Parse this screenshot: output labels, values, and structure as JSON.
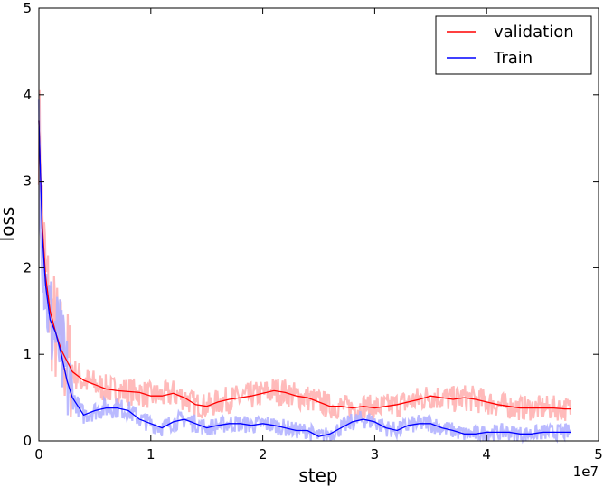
{
  "chart_data": {
    "type": "line",
    "xlabel": "step",
    "ylabel": "loss",
    "x_scale_label": "1e7",
    "xlim": [
      0,
      5
    ],
    "ylim": [
      0,
      5
    ],
    "x_ticks": [
      "0",
      "1",
      "2",
      "3",
      "4",
      "5"
    ],
    "y_ticks": [
      "0",
      "1",
      "2",
      "3",
      "4",
      "5"
    ],
    "grid": false,
    "legend_position": "top-right",
    "series": [
      {
        "name": "validation",
        "color": "#ff0000",
        "raw_color": "#ffb3b3",
        "x": [
          0.0,
          0.03,
          0.06,
          0.1,
          0.15,
          0.2,
          0.3,
          0.4,
          0.5,
          0.6,
          0.7,
          0.8,
          0.9,
          1.0,
          1.1,
          1.2,
          1.3,
          1.4,
          1.5,
          1.6,
          1.7,
          1.8,
          1.9,
          2.0,
          2.1,
          2.2,
          2.3,
          2.4,
          2.5,
          2.6,
          2.7,
          2.8,
          2.9,
          3.0,
          3.1,
          3.2,
          3.3,
          3.4,
          3.5,
          3.6,
          3.7,
          3.8,
          3.9,
          4.0,
          4.1,
          4.2,
          4.3,
          4.4,
          4.5,
          4.6,
          4.7,
          4.75
        ],
        "values": [
          3.7,
          2.5,
          1.9,
          1.5,
          1.25,
          1.05,
          0.8,
          0.7,
          0.65,
          0.6,
          0.58,
          0.57,
          0.56,
          0.52,
          0.52,
          0.55,
          0.5,
          0.42,
          0.4,
          0.45,
          0.48,
          0.5,
          0.52,
          0.55,
          0.58,
          0.56,
          0.52,
          0.5,
          0.45,
          0.4,
          0.4,
          0.38,
          0.4,
          0.38,
          0.4,
          0.42,
          0.45,
          0.48,
          0.52,
          0.5,
          0.48,
          0.5,
          0.48,
          0.45,
          0.42,
          0.4,
          0.38,
          0.38,
          0.38,
          0.38,
          0.37,
          0.37
        ]
      },
      {
        "name": "Train",
        "color": "#0000ff",
        "raw_color": "#b3b3ff",
        "x": [
          0.0,
          0.03,
          0.06,
          0.1,
          0.15,
          0.2,
          0.25,
          0.3,
          0.35,
          0.4,
          0.5,
          0.6,
          0.7,
          0.8,
          0.9,
          1.0,
          1.1,
          1.2,
          1.3,
          1.4,
          1.5,
          1.6,
          1.7,
          1.8,
          1.9,
          2.0,
          2.1,
          2.2,
          2.3,
          2.4,
          2.5,
          2.6,
          2.7,
          2.8,
          2.9,
          3.0,
          3.1,
          3.2,
          3.3,
          3.4,
          3.5,
          3.6,
          3.7,
          3.8,
          3.9,
          4.0,
          4.1,
          4.2,
          4.3,
          4.4,
          4.5,
          4.6,
          4.7,
          4.75
        ],
        "values": [
          3.7,
          2.4,
          1.8,
          1.4,
          1.25,
          1.0,
          0.7,
          0.5,
          0.4,
          0.3,
          0.35,
          0.38,
          0.38,
          0.35,
          0.25,
          0.2,
          0.15,
          0.22,
          0.25,
          0.2,
          0.15,
          0.18,
          0.2,
          0.2,
          0.18,
          0.2,
          0.18,
          0.15,
          0.12,
          0.12,
          0.05,
          0.08,
          0.15,
          0.22,
          0.25,
          0.22,
          0.15,
          0.12,
          0.18,
          0.2,
          0.2,
          0.15,
          0.12,
          0.08,
          0.08,
          0.1,
          0.1,
          0.1,
          0.08,
          0.08,
          0.1,
          0.1,
          0.1,
          0.1
        ]
      }
    ]
  }
}
